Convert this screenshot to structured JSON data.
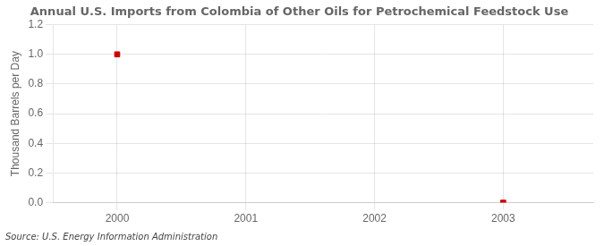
{
  "chart_data": {
    "type": "scatter",
    "title": "Annual U.S. Imports from Colombia of Other Oils for Petrochemical Feedstock Use",
    "ylabel": "Thousand Barrels per Day",
    "annotation": "Source: U.S. Energy Information Administration",
    "x": [
      2000,
      2003
    ],
    "values": [
      1.0,
      0.0
    ],
    "color": "#cc0000",
    "marker": "square",
    "xlim": [
      1999.5,
      2003.7
    ],
    "ylim": [
      0.0,
      1.2
    ],
    "xticks": [
      2000,
      2001,
      2002,
      2003
    ],
    "yticks": [
      {
        "value": 0.0,
        "label": "0.0"
      },
      0.2,
      0.4,
      0.6,
      0.8,
      {
        "value": 1.0,
        "label": "1.0"
      },
      1.2
    ],
    "grid": true
  }
}
